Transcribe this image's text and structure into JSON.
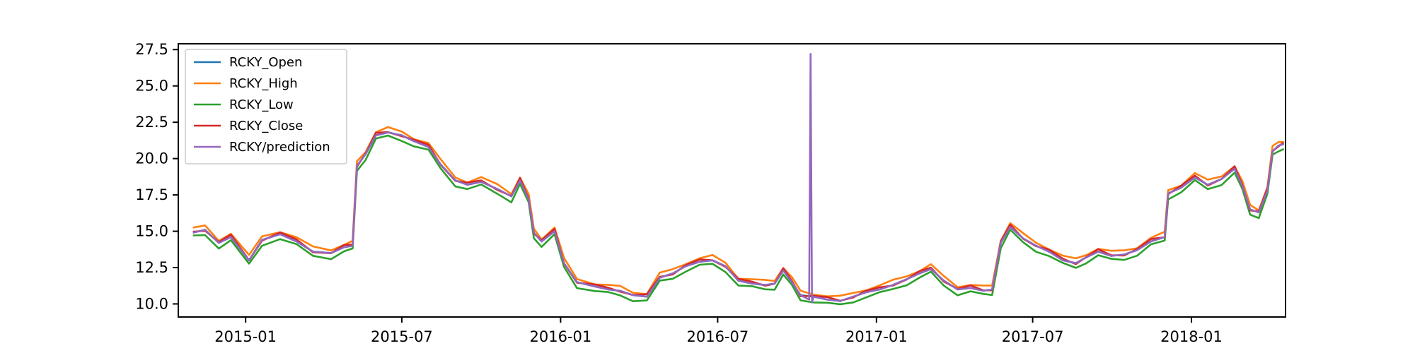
{
  "chart_data": {
    "type": "line",
    "title": "",
    "xlabel": "",
    "ylabel": "",
    "x_range": [
      "2014-10-15",
      "2018-04-20"
    ],
    "ylim": [
      9.1,
      27.9
    ],
    "x_ticks": [
      "2015-01",
      "2015-07",
      "2016-01",
      "2016-07",
      "2017-01",
      "2017-07",
      "2018-01"
    ],
    "y_ticks": [
      "10.0",
      "12.5",
      "15.0",
      "17.5",
      "20.0",
      "22.5",
      "25.0",
      "27.5"
    ],
    "legend_position": "upper-left",
    "grid": false,
    "spike": {
      "date": "2016-10-15",
      "value": 27.2,
      "series": "RCKY/prediction"
    },
    "series": [
      {
        "name": "RCKY_Open",
        "color": "#1f77b4",
        "offset": 0.0
      },
      {
        "name": "RCKY_High",
        "color": "#ff7f0e",
        "offset": 0.25
      },
      {
        "name": "RCKY_Low",
        "color": "#2ca02c",
        "offset": -0.3
      },
      {
        "name": "RCKY_Close",
        "color": "#d62728",
        "offset": 0.05
      },
      {
        "name": "RCKY/prediction",
        "color": "#9467bd",
        "offset": 0.0
      }
    ],
    "base_points": [
      [
        "2014-11-01",
        14.9
      ],
      [
        "2014-11-15",
        15.1
      ],
      [
        "2014-12-01",
        14.2
      ],
      [
        "2014-12-15",
        14.6
      ],
      [
        "2015-01-05",
        13.0
      ],
      [
        "2015-01-20",
        14.4
      ],
      [
        "2015-02-10",
        14.8
      ],
      [
        "2015-03-01",
        14.3
      ],
      [
        "2015-03-20",
        13.6
      ],
      [
        "2015-04-10",
        13.5
      ],
      [
        "2015-04-25",
        13.9
      ],
      [
        "2015-05-05",
        14.0
      ],
      [
        "2015-05-10",
        19.5
      ],
      [
        "2015-05-20",
        20.3
      ],
      [
        "2015-06-01",
        21.6
      ],
      [
        "2015-06-15",
        21.8
      ],
      [
        "2015-07-01",
        21.6
      ],
      [
        "2015-07-15",
        21.2
      ],
      [
        "2015-08-01",
        20.8
      ],
      [
        "2015-08-15",
        19.6
      ],
      [
        "2015-09-01",
        18.5
      ],
      [
        "2015-09-15",
        18.2
      ],
      [
        "2015-10-01",
        18.4
      ],
      [
        "2015-10-20",
        17.9
      ],
      [
        "2015-11-05",
        17.4
      ],
      [
        "2015-11-15",
        18.5
      ],
      [
        "2015-11-25",
        17.2
      ],
      [
        "2015-12-01",
        14.9
      ],
      [
        "2015-12-10",
        14.3
      ],
      [
        "2015-12-25",
        15.0
      ],
      [
        "2016-01-05",
        12.8
      ],
      [
        "2016-01-20",
        11.5
      ],
      [
        "2016-02-10",
        11.2
      ],
      [
        "2016-02-25",
        11.0
      ],
      [
        "2016-03-10",
        10.9
      ],
      [
        "2016-03-25",
        10.6
      ],
      [
        "2016-04-10",
        10.5
      ],
      [
        "2016-04-25",
        11.8
      ],
      [
        "2016-05-10",
        12.1
      ],
      [
        "2016-05-25",
        12.6
      ],
      [
        "2016-06-10",
        12.9
      ],
      [
        "2016-06-25",
        13.0
      ],
      [
        "2016-07-10",
        12.6
      ],
      [
        "2016-07-25",
        11.6
      ],
      [
        "2016-08-10",
        11.4
      ],
      [
        "2016-08-25",
        11.3
      ],
      [
        "2016-09-05",
        11.4
      ],
      [
        "2016-09-15",
        12.3
      ],
      [
        "2016-09-25",
        11.5
      ],
      [
        "2016-10-05",
        10.6
      ],
      [
        "2016-10-20",
        10.5
      ],
      [
        "2016-11-05",
        10.3
      ],
      [
        "2016-11-20",
        10.2
      ],
      [
        "2016-12-05",
        10.5
      ],
      [
        "2016-12-20",
        10.8
      ],
      [
        "2017-01-05",
        11.0
      ],
      [
        "2017-01-20",
        11.3
      ],
      [
        "2017-02-05",
        11.7
      ],
      [
        "2017-02-20",
        12.1
      ],
      [
        "2017-03-05",
        12.4
      ],
      [
        "2017-03-20",
        11.6
      ],
      [
        "2017-04-05",
        11.0
      ],
      [
        "2017-04-20",
        11.1
      ],
      [
        "2017-05-05",
        10.9
      ],
      [
        "2017-05-15",
        11.0
      ],
      [
        "2017-05-25",
        14.2
      ],
      [
        "2017-06-05",
        15.3
      ],
      [
        "2017-06-20",
        14.5
      ],
      [
        "2017-07-05",
        14.0
      ],
      [
        "2017-07-20",
        13.6
      ],
      [
        "2017-08-05",
        13.0
      ],
      [
        "2017-08-20",
        12.8
      ],
      [
        "2017-09-01",
        13.2
      ],
      [
        "2017-09-15",
        13.6
      ],
      [
        "2017-09-30",
        13.3
      ],
      [
        "2017-10-15",
        13.4
      ],
      [
        "2017-10-30",
        13.7
      ],
      [
        "2017-11-15",
        14.3
      ],
      [
        "2017-12-01",
        14.6
      ],
      [
        "2017-12-05",
        17.6
      ],
      [
        "2017-12-20",
        18.0
      ],
      [
        "2018-01-05",
        18.7
      ],
      [
        "2018-01-20",
        18.2
      ],
      [
        "2018-02-05",
        18.6
      ],
      [
        "2018-02-20",
        19.3
      ],
      [
        "2018-03-01",
        18.1
      ],
      [
        "2018-03-10",
        16.5
      ],
      [
        "2018-03-20",
        16.3
      ],
      [
        "2018-03-30",
        17.8
      ],
      [
        "2018-04-05",
        20.5
      ],
      [
        "2018-04-12",
        20.9
      ],
      [
        "2018-04-18",
        21.0
      ]
    ]
  }
}
